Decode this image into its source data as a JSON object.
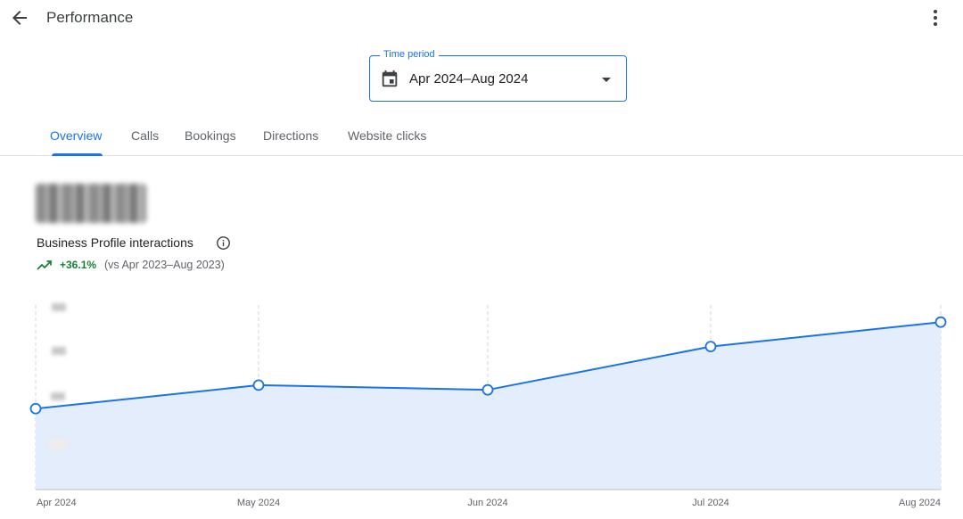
{
  "header": {
    "title": "Performance"
  },
  "time_period": {
    "label": "Time period",
    "value": "Apr 2024–Aug 2024"
  },
  "tabs": [
    {
      "label": "Overview",
      "active": true
    },
    {
      "label": "Calls"
    },
    {
      "label": "Bookings"
    },
    {
      "label": "Directions"
    },
    {
      "label": "Website clicks"
    }
  ],
  "metric": {
    "title": "Business Profile interactions",
    "delta": "+36.1%",
    "comparison": "(vs Apr 2023–Aug 2023)",
    "delta_color": "#188038"
  },
  "colors": {
    "accent": "#1a73e8",
    "area_fill": "#e3edfb"
  },
  "chart_data": {
    "type": "area",
    "x": [
      "Apr 2024",
      "May 2024",
      "Jun 2024",
      "Jul 2024",
      "Aug 2024"
    ],
    "values": [
      0.43,
      0.555,
      0.53,
      0.76,
      0.89
    ],
    "ylim": [
      0,
      1
    ],
    "grid": "vertical"
  }
}
